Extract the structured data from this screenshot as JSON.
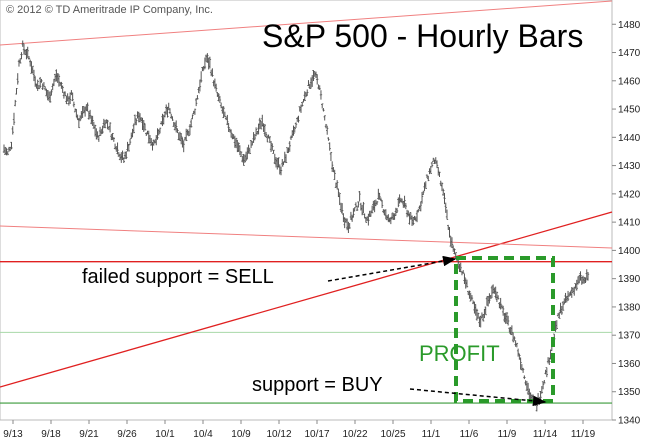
{
  "chart_data": {
    "type": "ohlc",
    "title": "S&P 500 - Hourly Bars",
    "copyright": "© 2012 © TD Ameritrade IP Company, Inc.",
    "ylim": [
      1340,
      1486
    ],
    "y_ticks": [
      1340,
      1350,
      1360,
      1370,
      1380,
      1390,
      1400,
      1410,
      1420,
      1430,
      1440,
      1450,
      1460,
      1470,
      1480
    ],
    "x_tick_labels": [
      "9/13",
      "9/18",
      "9/21",
      "9/26",
      "10/1",
      "10/4",
      "10/9",
      "10/12",
      "10/17",
      "10/22",
      "10/25",
      "11/1",
      "11/6",
      "11/9",
      "11/14",
      "11/19"
    ],
    "series": [
      {
        "values": [
          1436,
          1434,
          1438,
          1452,
          1466,
          1472,
          1470,
          1467,
          1462,
          1458,
          1460,
          1457,
          1454,
          1458,
          1462,
          1459,
          1456,
          1453,
          1455,
          1450,
          1446,
          1448,
          1451,
          1447,
          1444,
          1440,
          1442,
          1446,
          1444,
          1440,
          1437,
          1434,
          1432,
          1436,
          1440,
          1445,
          1448,
          1446,
          1442,
          1440,
          1437,
          1440,
          1444,
          1448,
          1451,
          1447,
          1443,
          1440,
          1437,
          1441,
          1445,
          1450,
          1457,
          1463,
          1468,
          1466,
          1460,
          1455,
          1451,
          1447,
          1444,
          1441,
          1438,
          1435,
          1432,
          1434,
          1437,
          1440,
          1443,
          1446,
          1442,
          1438,
          1434,
          1431,
          1429,
          1432,
          1436,
          1440,
          1444,
          1449,
          1453,
          1457,
          1460,
          1462,
          1459,
          1452,
          1444,
          1436,
          1428,
          1422,
          1416,
          1411,
          1409,
          1412,
          1415,
          1418,
          1414,
          1411,
          1413,
          1416,
          1419,
          1416,
          1413,
          1410,
          1412,
          1415,
          1418,
          1416,
          1413,
          1410,
          1412,
          1415,
          1420,
          1425,
          1429,
          1432,
          1428,
          1422,
          1415,
          1406,
          1400,
          1397,
          1394,
          1390,
          1386,
          1382,
          1378,
          1375,
          1377,
          1381,
          1384,
          1387,
          1383,
          1379,
          1376,
          1373,
          1370,
          1366,
          1361,
          1356,
          1351,
          1347,
          1345,
          1348,
          1353,
          1358,
          1364,
          1370,
          1376,
          1380,
          1382,
          1384,
          1386,
          1388,
          1390,
          1389,
          1391
        ]
      }
    ],
    "annotations": [
      {
        "text": "failed support = SELL",
        "points_to_value": 1396
      },
      {
        "text": "support = BUY",
        "points_to_value": 1345
      },
      {
        "text": "PROFIT"
      }
    ],
    "reference_lines": {
      "support_red": 1396,
      "support_green": 1346,
      "light_green": 1371
    },
    "colors": {
      "bars": "#555555",
      "red_lines": "#e02020",
      "light_red_lines": "#f08080",
      "green_line": "#3a9a3a",
      "light_green_line": "#a8d8a8",
      "profit_box": "#2a9a2a",
      "annotation_arrow": "#000000"
    },
    "grid": false,
    "legend": "none"
  }
}
